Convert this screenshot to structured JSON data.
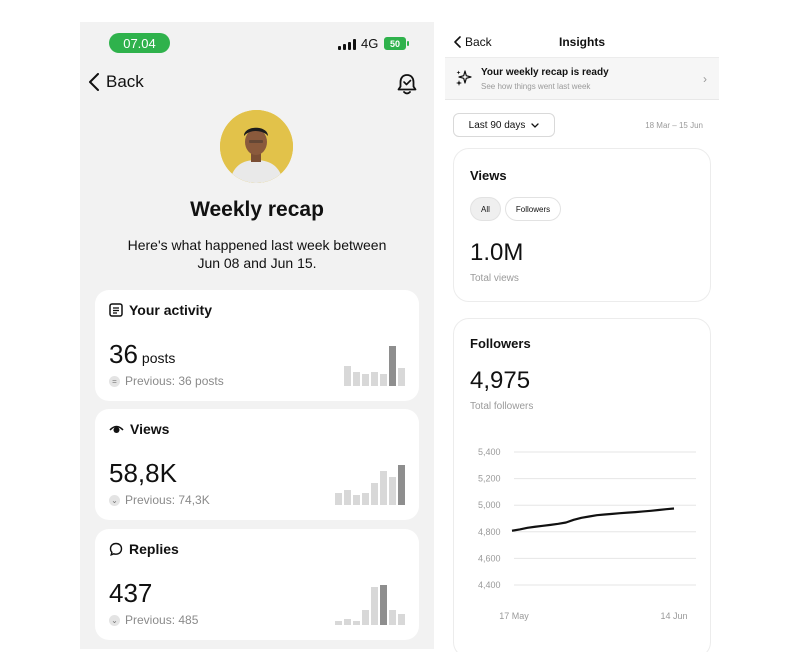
{
  "left": {
    "status": {
      "time": "07.04",
      "network": "4G",
      "battery": "50"
    },
    "back_label": "Back",
    "title": "Weekly recap",
    "subtitle": "Here's what happened last week between Jun 08 and Jun 15.",
    "cards": [
      {
        "title": "Your activity",
        "value": "36",
        "unit": "posts",
        "previous": "Previous: 36 posts",
        "bars": [
          20,
          14,
          12,
          14,
          12,
          40,
          18
        ],
        "highlight": 5
      },
      {
        "title": "Views",
        "value": "58,8K",
        "unit": "",
        "previous": "Previous: 74,3K",
        "bars": [
          12,
          15,
          10,
          12,
          22,
          34,
          28,
          40
        ],
        "highlight": 7
      },
      {
        "title": "Replies",
        "value": "437",
        "unit": "",
        "previous": "Previous: 485",
        "bars": [
          4,
          6,
          4,
          14,
          36,
          38,
          14,
          10
        ],
        "highlight": 5
      }
    ]
  },
  "right": {
    "back_label": "Back",
    "title": "Insights",
    "recap": {
      "title": "Your weekly recap is ready",
      "subtitle": "See how things went last week"
    },
    "period": "Last 90 days",
    "date_range": "18 Mar – 15 Jun",
    "views_card": {
      "title": "Views",
      "filters": [
        "All",
        "Followers"
      ],
      "value": "1.0M",
      "label": "Total views"
    },
    "followers_card": {
      "title": "Followers",
      "value": "4,975",
      "label": "Total followers"
    }
  },
  "icons": {
    "back": "chevron-left-icon",
    "bell": "bell-icon",
    "activity": "list-icon",
    "views": "eye-icon",
    "replies": "chat-bubble-icon",
    "sparkle": "sparkle-icon"
  },
  "chart_data": {
    "type": "line",
    "title": "Followers",
    "x_ticks": [
      "17 May",
      "14 Jun"
    ],
    "y_ticks": [
      5400,
      5200,
      5000,
      4800,
      4600,
      4400
    ],
    "ylim": [
      4400,
      5400
    ],
    "grid": true,
    "series": [
      {
        "values": [
          4808,
          4818,
          4830,
          4838,
          4845,
          4852,
          4860,
          4870,
          4890,
          4905,
          4915,
          4925,
          4930,
          4935,
          4940,
          4944,
          4948,
          4953,
          4958,
          4964,
          4970,
          4975
        ]
      }
    ]
  }
}
